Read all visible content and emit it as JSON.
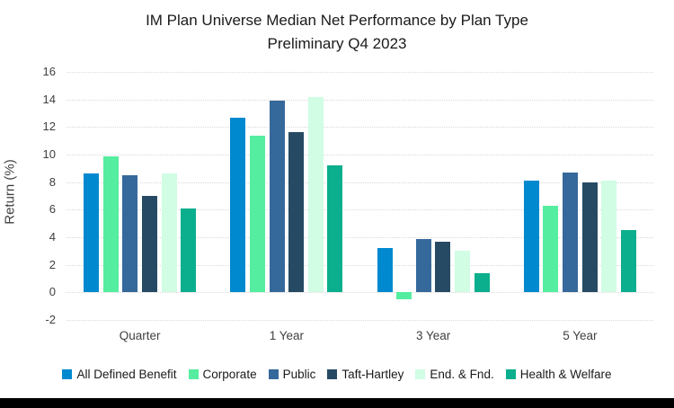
{
  "title": "IM Plan Universe Median Net Performance by Plan Type",
  "subtitle": "Preliminary Q4 2023",
  "chart_data": {
    "type": "bar",
    "title": "IM Plan Universe Median Net Performance by Plan Type",
    "subtitle": "Preliminary Q4 2023",
    "ylabel": "Return (%)",
    "xlabel": "",
    "categories": [
      "Quarter",
      "1 Year",
      "3 Year",
      "5 Year"
    ],
    "series": [
      {
        "name": "All Defined Benefit",
        "color": "#0089CF",
        "values": [
          8.6,
          12.7,
          3.2,
          8.1
        ]
      },
      {
        "name": "Corporate",
        "color": "#55EDA0",
        "values": [
          9.9,
          11.4,
          -0.5,
          6.3
        ]
      },
      {
        "name": "Public",
        "color": "#35689B",
        "values": [
          8.5,
          13.9,
          3.9,
          8.7
        ]
      },
      {
        "name": "Taft-Hartley",
        "color": "#264A63",
        "values": [
          7.0,
          11.6,
          3.7,
          8.0
        ]
      },
      {
        "name": "End. & Fnd.",
        "color": "#D0FDE4",
        "values": [
          8.6,
          14.2,
          3.0,
          8.1
        ]
      },
      {
        "name": "Health & Welfare",
        "color": "#0BAF8D",
        "values": [
          6.1,
          9.2,
          1.4,
          4.5
        ]
      }
    ],
    "ylim": [
      -2,
      16
    ],
    "yticks": [
      16,
      14,
      12,
      10,
      8,
      6,
      4,
      2,
      0,
      -2
    ],
    "grid": true,
    "legend_position": "bottom"
  }
}
